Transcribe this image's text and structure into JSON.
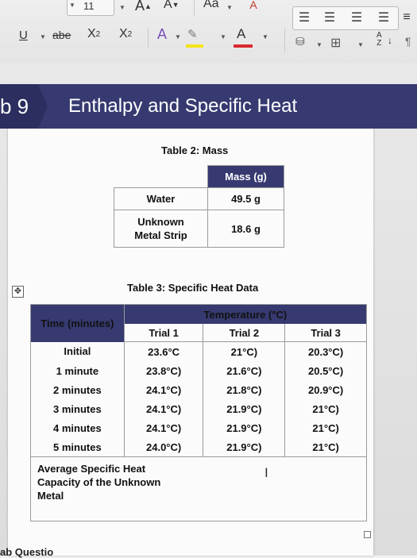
{
  "ribbon": {
    "font_size": "11",
    "grow_font": "A",
    "shrink_font": "A",
    "change_case": "Aa",
    "underline": "U",
    "strikethrough": "abe",
    "subscript_base": "X",
    "subscript_mark": "2",
    "superscript_base": "X",
    "superscript_mark": "2",
    "text_effects": "A",
    "font_color": "A",
    "sort_label_top": "A",
    "sort_label_bottom": "Z",
    "highlight_color": "#f4e31a",
    "font_color_bar": "#d9282f"
  },
  "banner": {
    "lab_number": "b 9",
    "title": "Enthalpy and Specific Heat"
  },
  "table2": {
    "caption": "Table 2: Mass",
    "header": "Mass (g)",
    "rows": [
      {
        "label": "Water",
        "value": "49.5 g"
      },
      {
        "label_line1": "Unknown",
        "label_line2": "Metal Strip",
        "value": "18.6 g"
      }
    ]
  },
  "table3": {
    "caption": "Table 3: Specific Heat Data",
    "time_header": "Time (minutes)",
    "temp_header": "Temperature (°C)",
    "trials": [
      "Trial 1",
      "Trial 2",
      "Trial 3"
    ],
    "rows": [
      {
        "time": "Initial",
        "t1": "23.6°C",
        "t2": "21°C)",
        "t3": "20.3°C)"
      },
      {
        "time": "1 minute",
        "t1": "23.8°C)",
        "t2": "21.6°C)",
        "t3": "20.5°C)"
      },
      {
        "time": "2 minutes",
        "t1": "24.1°C)",
        "t2": "21.8°C)",
        "t3": "20.9°C)"
      },
      {
        "time": "3 minutes",
        "t1": "24.1°C)",
        "t2": "21.9°C)",
        "t3": "21°C)"
      },
      {
        "time": "4 minutes",
        "t1": "24.1°C)",
        "t2": "21.9°C)",
        "t3": "21°C)"
      },
      {
        "time": "5 minutes",
        "t1": "24.0°C)",
        "t2": "21.9°C)",
        "t3": "21°C)"
      }
    ],
    "average_line1": "Average Specific Heat",
    "average_line2": "Capacity of the Unknown",
    "average_line3": "Metal"
  },
  "footer": {
    "partial_text": "ab Questio"
  }
}
